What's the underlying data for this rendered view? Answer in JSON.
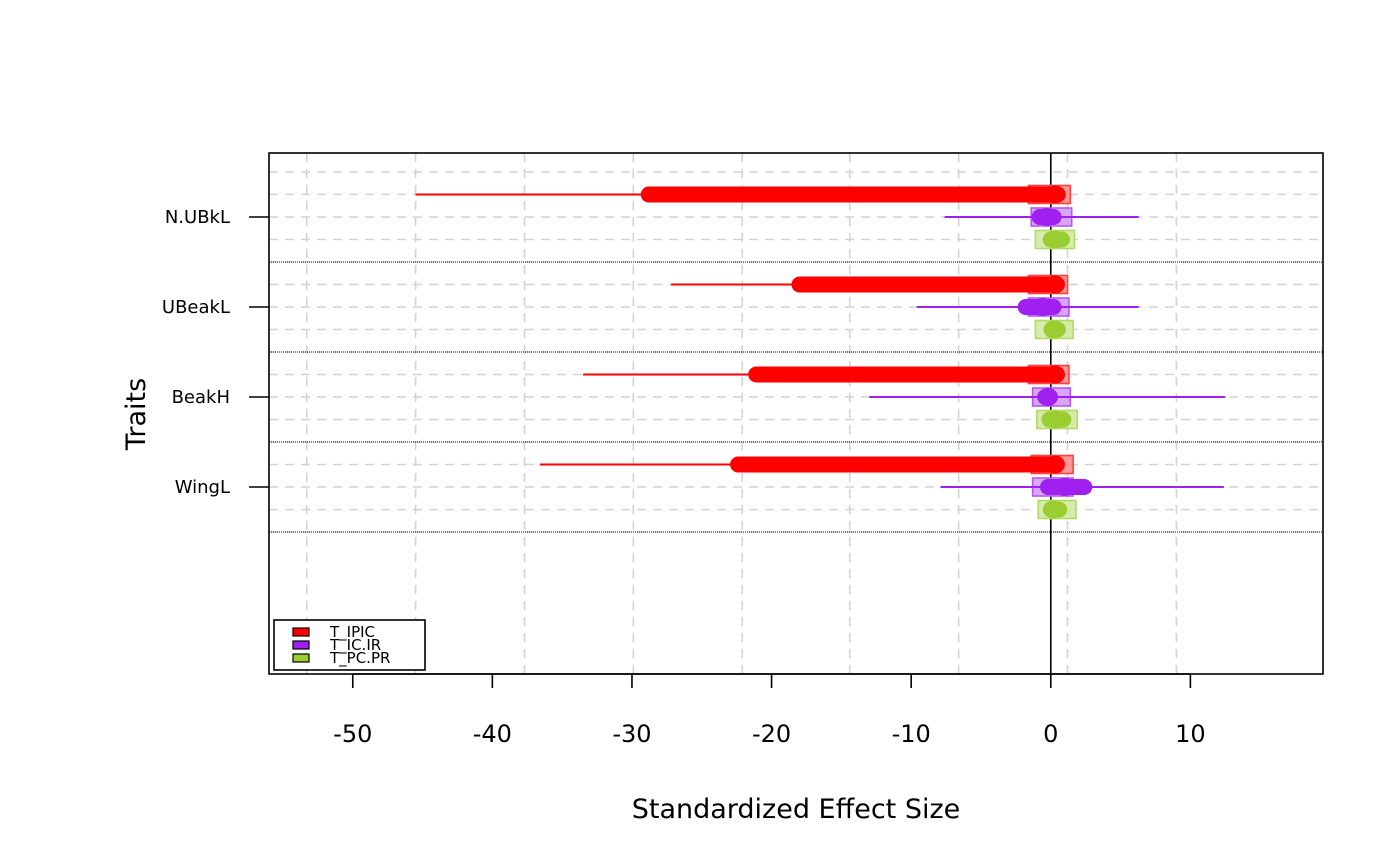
{
  "chart_data": {
    "type": "forest",
    "xlabel": "Standardized Effect Size",
    "ylabel": "Traits",
    "xlim": [
      -56,
      19.5
    ],
    "xticks": [
      -50,
      -40,
      -30,
      -20,
      -10,
      0,
      10
    ],
    "xtick_labels": [
      "-50",
      "-40",
      "-30",
      "-20",
      "-10",
      "0",
      "10"
    ],
    "grid_x": [
      -53.3,
      -45.5,
      -37.7,
      -29.9,
      -22.1,
      -14.4,
      -6.6,
      1.2,
      9.0
    ],
    "grid": true,
    "legend_position": "bottom-left",
    "traits": [
      "N.UBkL",
      "UBeakL",
      "BeakH",
      "WingL"
    ],
    "series": [
      {
        "name": "T_IPIC",
        "color": "#ff0000",
        "points": [
          {
            "trait": "N.UBkL",
            "whisker": [
              -45.5,
              0.0
            ],
            "thick": [
              -28.8,
              0.5
            ],
            "box": [
              -1.6,
              1.4
            ],
            "center": 0.3
          },
          {
            "trait": "UBeakL",
            "whisker": [
              -27.2,
              0.0
            ],
            "thick": [
              -18.0,
              0.4
            ],
            "box": [
              -1.6,
              1.2
            ],
            "center": 0.3
          },
          {
            "trait": "BeakH",
            "whisker": [
              -33.5,
              0.0
            ],
            "thick": [
              -21.1,
              0.4
            ],
            "box": [
              -1.6,
              1.3
            ],
            "center": 0.3
          },
          {
            "trait": "WingL",
            "whisker": [
              -36.6,
              0.0
            ],
            "thick": [
              -22.4,
              0.4
            ],
            "box": [
              -1.4,
              1.6
            ],
            "center": 0.3
          }
        ]
      },
      {
        "name": "T_IC.IR",
        "color": "#a020f0",
        "points": [
          {
            "trait": "N.UBkL",
            "whisker": [
              -7.6,
              6.3
            ],
            "thick": [
              -0.8,
              0.2
            ],
            "box": [
              -1.4,
              1.5
            ],
            "center": -0.3
          },
          {
            "trait": "UBeakL",
            "whisker": [
              -9.6,
              6.3
            ],
            "thick": [
              -1.8,
              0.2
            ],
            "box": [
              -1.6,
              1.3
            ],
            "center": -0.6
          },
          {
            "trait": "BeakH",
            "whisker": [
              -13.0,
              12.5
            ],
            "thick": [
              -0.4,
              -0.1
            ],
            "box": [
              -1.3,
              1.4
            ],
            "center": -0.2
          },
          {
            "trait": "WingL",
            "whisker": [
              -7.9,
              12.4
            ],
            "thick": [
              -0.2,
              2.4
            ],
            "box": [
              -1.3,
              1.6
            ],
            "center": 1.0
          }
        ]
      },
      {
        "name": "T_PC.PR",
        "color": "#9acd32",
        "points": [
          {
            "trait": "N.UBkL",
            "whisker": [
              0.3,
              0.6
            ],
            "thick": [
              0.0,
              0.8
            ],
            "box": [
              -1.1,
              1.7
            ],
            "center": 0.3
          },
          {
            "trait": "UBeakL",
            "whisker": [
              0.0,
              0.6
            ],
            "thick": [
              0.1,
              0.5
            ],
            "box": [
              -1.1,
              1.6
            ],
            "center": 0.2
          },
          {
            "trait": "BeakH",
            "whisker": [
              0.0,
              0.7
            ],
            "thick": [
              -0.1,
              0.9
            ],
            "box": [
              -1.0,
              1.9
            ],
            "center": 0.3
          },
          {
            "trait": "WingL",
            "whisker": [
              0.0,
              0.5
            ],
            "thick": [
              0.0,
              0.6
            ],
            "box": [
              -0.9,
              1.8
            ],
            "center": 0.2
          }
        ]
      }
    ]
  }
}
